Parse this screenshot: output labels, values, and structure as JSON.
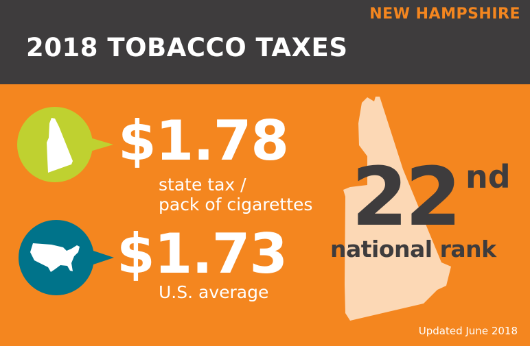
{
  "header": {
    "state": "NEW HAMPSHIRE",
    "title": "2018 TOBACCO TAXES"
  },
  "state_tax": {
    "value": "$1.78",
    "label_line1": "state tax /",
    "label_line2": "pack of cigarettes",
    "icon": "new-hampshire-map-icon"
  },
  "us_average": {
    "value": "$1.73",
    "label": "U.S. average",
    "icon": "usa-map-icon"
  },
  "rank": {
    "number": "22",
    "suffix": "nd",
    "label": "national rank"
  },
  "footer": {
    "updated": "Updated June 2018"
  },
  "colors": {
    "header": "#3e3c3d",
    "background": "#f4861f",
    "state_bubble": "#bfd130",
    "us_bubble": "#00738a",
    "state_shape": "#fcd8b5"
  }
}
